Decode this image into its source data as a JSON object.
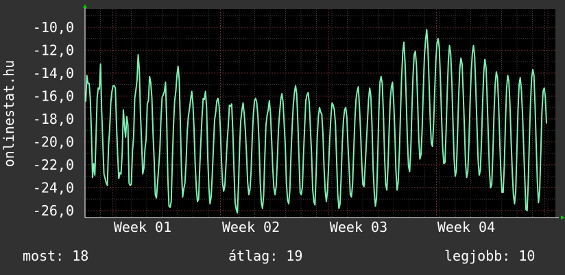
{
  "chart_data": {
    "type": "line",
    "ylabel": "onlinestat.hu",
    "ylim": [
      -26.6,
      -8.4
    ],
    "y_ticks": [
      -10,
      -12,
      -14,
      -16,
      -18,
      -20,
      -22,
      -24,
      -26
    ],
    "y_tick_labels": [
      "-10,0",
      "-12,0",
      "-14,0",
      "-16,0",
      "-18,0",
      "-20,0",
      "-22,0",
      "-24,0",
      "-26,0"
    ],
    "x_tick_labels": [
      "Week 01",
      "Week 02",
      "Week 03",
      "Week 04"
    ],
    "grid": true,
    "series": [
      {
        "color": "#7ff0b4",
        "values": [
          -16.5,
          -14.2,
          -14.9,
          -14.9,
          -16.2,
          -19.2,
          -23.1,
          -21.9,
          -22.9,
          -19.8,
          -16.2,
          -15.3,
          -15.4,
          -13.2,
          -17.3,
          -20.1,
          -22.8,
          -23.2,
          -23.6,
          -23.8,
          -20.4,
          -18.9,
          -16.6,
          -15.6,
          -15.1,
          -15.1,
          -15.3,
          -18.5,
          -21.1,
          -23.2,
          -22.7,
          -22.8,
          -21.0,
          -17.2,
          -18.6,
          -19.6,
          -17.8,
          -18.5,
          -23.6,
          -23.8,
          -23.7,
          -20.8,
          -19.6,
          -16.2,
          -15.5,
          -14.6,
          -12.4,
          -13.7,
          -17.5,
          -20.0,
          -22.8,
          -22.3,
          -20.6,
          -19.7,
          -16.7,
          -16.4,
          -14.3,
          -14.8,
          -16.1,
          -19.2,
          -21.5,
          -24.6,
          -24.9,
          -23.6,
          -22.2,
          -20.7,
          -18.0,
          -16.1,
          -15.9,
          -15.6,
          -14.8,
          -18.1,
          -23.1,
          -25.6,
          -25.7,
          -25.2,
          -21.5,
          -18.5,
          -16.4,
          -15.6,
          -14.2,
          -13.4,
          -14.6,
          -18.5,
          -22.5,
          -24.8,
          -24.1,
          -23.6,
          -21.8,
          -19.1,
          -17.8,
          -17.1,
          -16.3,
          -15.6,
          -16.7,
          -18.9,
          -22.0,
          -24.1,
          -25.2,
          -25.0,
          -22.2,
          -19.9,
          -17.8,
          -16.2,
          -16.3,
          -15.6,
          -17.0,
          -21.3,
          -24.0,
          -25.4,
          -24.8,
          -22.8,
          -20.4,
          -18.1,
          -17.4,
          -16.4,
          -16.2,
          -16.9,
          -18.7,
          -21.6,
          -23.6,
          -24.3,
          -23.8,
          -22.0,
          -20.0,
          -18.6,
          -16.8,
          -16.9,
          -16.7,
          -19.1,
          -22.4,
          -25.3,
          -25.9,
          -26.2,
          -23.6,
          -20.3,
          -18.1,
          -17.2,
          -16.6,
          -17.6,
          -19.0,
          -21.1,
          -23.5,
          -24.6,
          -24.2,
          -22.6,
          -19.7,
          -17.6,
          -16.4,
          -16.2,
          -16.6,
          -17.8,
          -20.1,
          -23.5,
          -25.3,
          -25.8,
          -24.7,
          -21.5,
          -18.6,
          -17.7,
          -17.2,
          -16.4,
          -17.5,
          -19.8,
          -22.3,
          -24.0,
          -24.6,
          -23.9,
          -21.6,
          -18.9,
          -17.5,
          -16.3,
          -15.8,
          -16.5,
          -18.4,
          -20.4,
          -23.6,
          -25.1,
          -25.4,
          -24.2,
          -21.1,
          -18.7,
          -16.8,
          -15.7,
          -15.1,
          -15.8,
          -18.3,
          -21.4,
          -24.4,
          -24.6,
          -23.9,
          -21.0,
          -18.6,
          -16.4,
          -15.9,
          -15.7,
          -16.6,
          -18.8,
          -21.0,
          -24.1,
          -25.2,
          -25.5,
          -22.8,
          -19.6,
          -17.8,
          -17.0,
          -17.4,
          -17.6,
          -19.3,
          -22.3,
          -24.3,
          -25.2,
          -24.2,
          -22.0,
          -19.7,
          -17.8,
          -16.6,
          -16.8,
          -17.2,
          -18.5,
          -21.6,
          -24.6,
          -25.8,
          -25.4,
          -23.0,
          -20.0,
          -18.1,
          -17.2,
          -17.0,
          -17.9,
          -20.4,
          -22.4,
          -24.6,
          -24.8,
          -23.7,
          -20.8,
          -18.1,
          -16.3,
          -15.6,
          -15.2,
          -16.9,
          -19.1,
          -21.8,
          -23.7,
          -23.9,
          -22.2,
          -20.2,
          -18.3,
          -16.3,
          -15.3,
          -16.0,
          -18.5,
          -22.3,
          -24.4,
          -25.6,
          -24.9,
          -21.4,
          -17.4,
          -14.8,
          -14.3,
          -14.9,
          -17.5,
          -21.1,
          -23.7,
          -24.2,
          -22.3,
          -19.1,
          -16.4,
          -15.2,
          -14.8,
          -16.4,
          -19.0,
          -22.5,
          -24.2,
          -23.5,
          -20.9,
          -17.5,
          -14.3,
          -12.2,
          -11.3,
          -13.1,
          -16.2,
          -19.7,
          -22.1,
          -22.6,
          -20.8,
          -17.2,
          -14.2,
          -12.4,
          -12.1,
          -13.3,
          -16.4,
          -19.7,
          -21.5,
          -21.1,
          -18.8,
          -15.4,
          -12.5,
          -11.1,
          -10.2,
          -11.7,
          -14.6,
          -17.9,
          -20.1,
          -20.4,
          -18.5,
          -15.6,
          -12.9,
          -11.4,
          -11.0,
          -11.8,
          -14.5,
          -17.8,
          -20.6,
          -21.9,
          -21.8,
          -19.0,
          -15.6,
          -12.9,
          -11.6,
          -12.3,
          -14.7,
          -18.3,
          -21.5,
          -23.0,
          -22.5,
          -19.4,
          -16.0,
          -13.6,
          -12.7,
          -13.2,
          -15.7,
          -18.6,
          -21.8,
          -23.1,
          -22.6,
          -20.1,
          -16.6,
          -13.9,
          -12.3,
          -11.6,
          -12.5,
          -15.3,
          -18.5,
          -21.5,
          -22.9,
          -22.5,
          -20.0,
          -16.6,
          -13.9,
          -12.8,
          -13.5,
          -16.2,
          -19.5,
          -22.6,
          -24.0,
          -23.7,
          -21.0,
          -17.5,
          -15.0,
          -13.9,
          -14.4,
          -16.6,
          -19.8,
          -22.7,
          -24.4,
          -24.4,
          -22.1,
          -18.4,
          -15.4,
          -14.2,
          -14.7,
          -16.8,
          -19.9,
          -22.6,
          -24.6,
          -25.4,
          -24.3,
          -21.0,
          -17.3,
          -15.0,
          -14.4,
          -15.5,
          -17.6,
          -20.5,
          -23.3,
          -25.9,
          -26.0,
          -23.6,
          -19.8,
          -16.6,
          -14.4,
          -13.7,
          -14.2,
          -16.9,
          -20.3,
          -23.5,
          -25.3,
          -24.3,
          -21.0,
          -17.4,
          -15.6,
          -15.3,
          -16.1,
          -18.4
        ]
      }
    ]
  },
  "footer": {
    "current_label": "most: 18",
    "average_label": "átlag: 19",
    "best_label": "legjobb: 10"
  }
}
